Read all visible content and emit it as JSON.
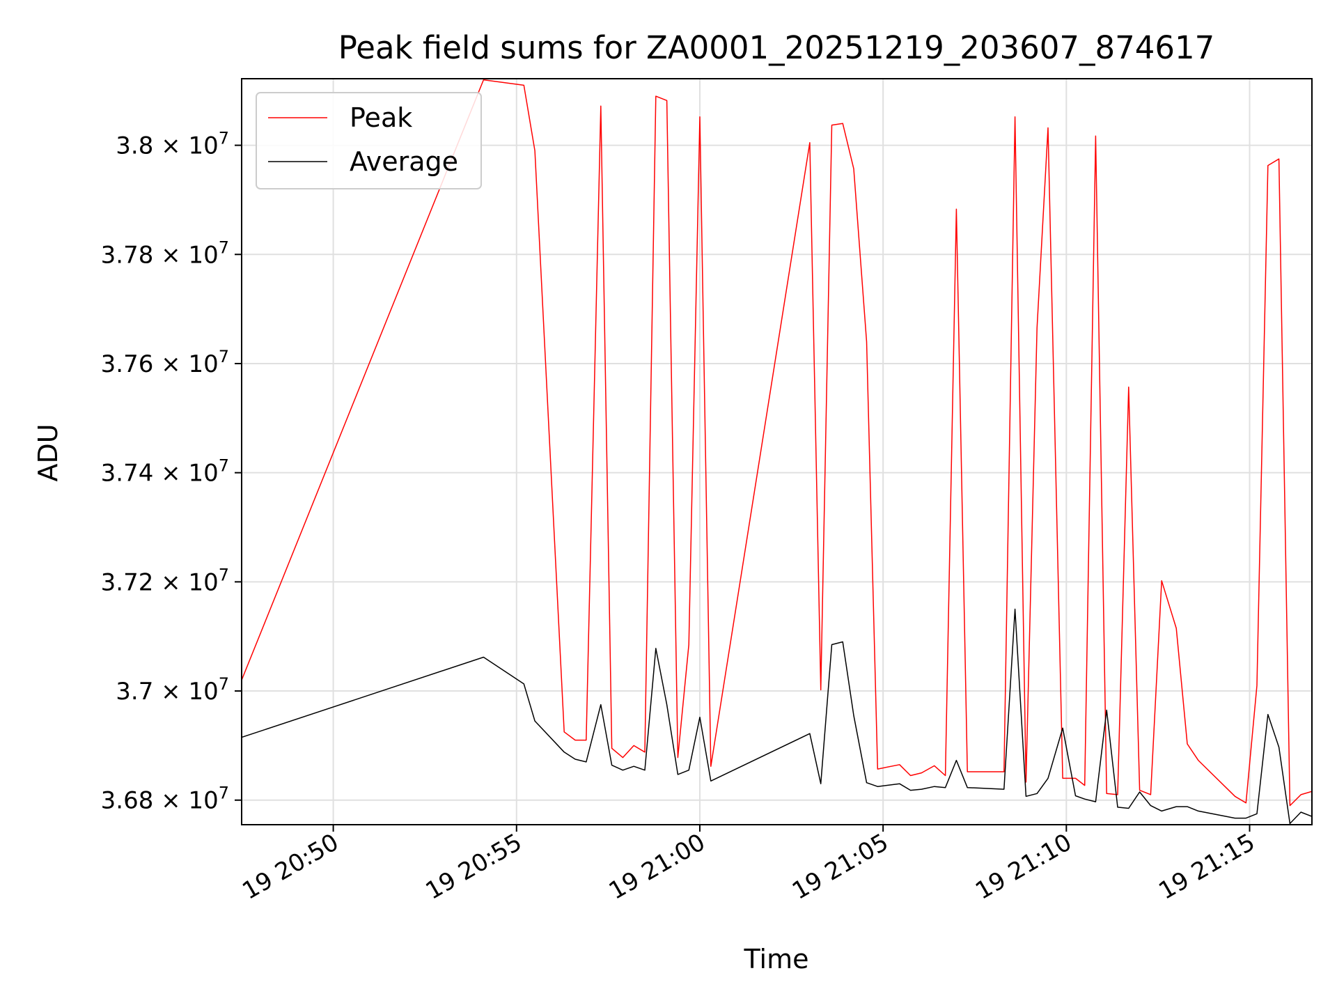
{
  "chart_data": {
    "type": "line",
    "title": "Peak field sums for ZA0001_20251219_203607_874617",
    "xlabel": "Time",
    "ylabel": "ADU",
    "grid": true,
    "legend_position": "top-left",
    "x_unit": "minutes since 19 20:40",
    "xlim": [
      7.5,
      36.7
    ],
    "ylim": [
      36755000,
      38122000
    ],
    "x_ticks": [
      {
        "value": 10,
        "label": "19 20:50"
      },
      {
        "value": 15,
        "label": "19 20:55"
      },
      {
        "value": 20,
        "label": "19 21:00"
      },
      {
        "value": 25,
        "label": "19 21:05"
      },
      {
        "value": 30,
        "label": "19 21:10"
      },
      {
        "value": 35,
        "label": "19 21:15"
      }
    ],
    "y_ticks": [
      {
        "value": 36800000,
        "mantissa": "3.68",
        "exponent": "7"
      },
      {
        "value": 37000000,
        "mantissa": "3.7",
        "exponent": "7"
      },
      {
        "value": 37200000,
        "mantissa": "3.72",
        "exponent": "7"
      },
      {
        "value": 37400000,
        "mantissa": "3.74",
        "exponent": "7"
      },
      {
        "value": 37600000,
        "mantissa": "3.76",
        "exponent": "7"
      },
      {
        "value": 37800000,
        "mantissa": "3.78",
        "exponent": "7"
      },
      {
        "value": 38000000,
        "mantissa": "3.8",
        "exponent": "7"
      }
    ],
    "times_base": "19 20:40",
    "x": [
      7.5,
      14.1,
      15.2,
      15.5,
      16.3,
      16.6,
      16.9,
      17.3,
      17.6,
      17.9,
      18.2,
      18.5,
      18.8,
      19.1,
      19.4,
      19.7,
      20.0,
      20.3,
      23.0,
      23.3,
      23.6,
      23.9,
      24.2,
      24.55,
      24.85,
      25.45,
      25.75,
      26.05,
      26.4,
      26.7,
      27.0,
      27.3,
      28.3,
      28.6,
      28.9,
      29.2,
      29.5,
      29.9,
      30.25,
      30.5,
      30.8,
      31.1,
      31.4,
      31.7,
      32.0,
      32.3,
      32.6,
      33.0,
      33.3,
      33.6,
      34.6,
      34.9,
      35.2,
      35.5,
      35.8,
      36.1,
      36.4,
      36.7
    ],
    "series": [
      {
        "name": "Peak",
        "color": "#ff0000",
        "values": [
          37020000,
          38120000,
          38110000,
          37990000,
          36925000,
          36910000,
          36910000,
          38072000,
          36895000,
          36878000,
          36900000,
          36888000,
          38090000,
          38082000,
          36878000,
          37085000,
          38052000,
          36862000,
          38005000,
          37002000,
          38037000,
          38040000,
          37957000,
          37640000,
          36857000,
          36865000,
          36845000,
          36850000,
          36863000,
          36845000,
          37883000,
          36852000,
          36852000,
          38052000,
          36833000,
          37665000,
          38032000,
          36840000,
          36840000,
          36827000,
          38017000,
          36812000,
          36810000,
          37557000,
          36818000,
          36810000,
          37202000,
          37115000,
          36903000,
          36873000,
          36807000,
          36795000,
          37010000,
          37963000,
          37975000,
          36790000,
          36810000,
          36816000
        ]
      },
      {
        "name": "Average",
        "color": "#000000",
        "values": [
          36915000,
          37062000,
          37013000,
          36945000,
          36888000,
          36875000,
          36870000,
          36975000,
          36864000,
          36855000,
          36862000,
          36855000,
          37078000,
          36975000,
          36847000,
          36855000,
          36952000,
          36835000,
          36922000,
          36830000,
          37085000,
          37090000,
          36955000,
          36832000,
          36825000,
          36830000,
          36818000,
          36820000,
          36825000,
          36823000,
          36873000,
          36823000,
          36820000,
          37150000,
          36807000,
          36812000,
          36840000,
          36932000,
          36808000,
          36802000,
          36797000,
          36965000,
          36787000,
          36785000,
          36815000,
          36790000,
          36780000,
          36788000,
          36788000,
          36780000,
          36767000,
          36767000,
          36775000,
          36957000,
          36897000,
          36757000,
          36778000,
          36770000
        ]
      }
    ]
  }
}
